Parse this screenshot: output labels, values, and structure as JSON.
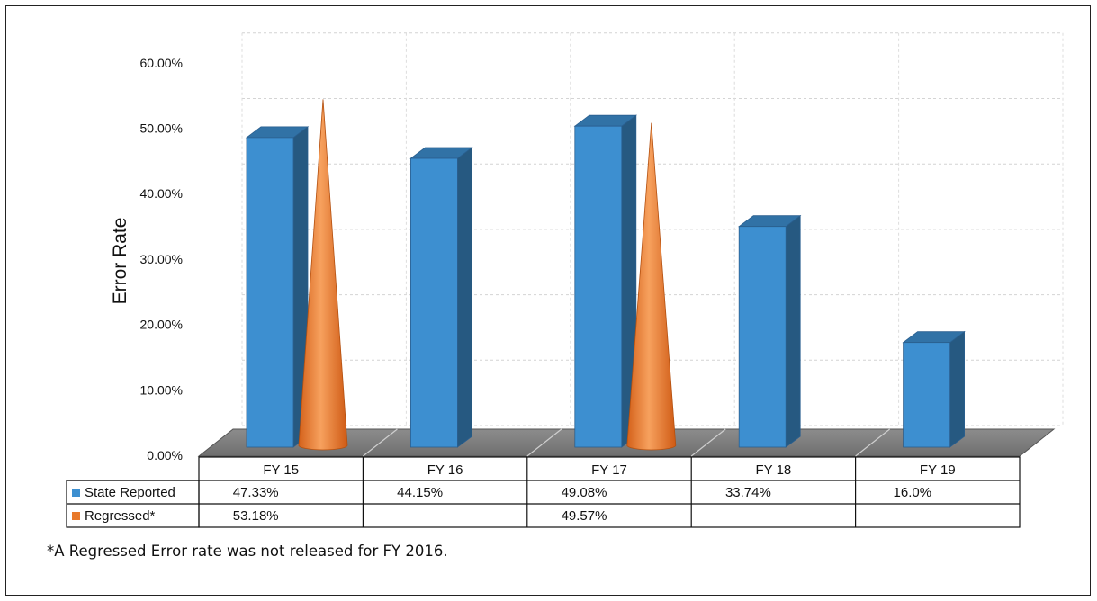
{
  "chart_data": {
    "type": "bar",
    "ylabel": "Error Rate",
    "ylim": [
      0,
      60
    ],
    "yticks": [
      "0.00%",
      "10.00%",
      "20.00%",
      "30.00%",
      "40.00%",
      "50.00%",
      "60.00%"
    ],
    "categories": [
      "FY 15",
      "FY 16",
      "FY 17",
      "FY 18",
      "FY 19"
    ],
    "series": [
      {
        "name": "State Reported",
        "shape": "3d-bar",
        "color": "#3d8fd0",
        "values": [
          47.33,
          44.15,
          49.08,
          33.74,
          16.0
        ],
        "labels": [
          "47.33%",
          "44.15%",
          "49.08%",
          "33.74%",
          "16.0%"
        ]
      },
      {
        "name": "Regressed*",
        "shape": "cone",
        "color": "#e8792a",
        "values": [
          53.18,
          null,
          49.57,
          null,
          null
        ],
        "labels": [
          "53.18%",
          "",
          "49.57%",
          "",
          ""
        ]
      }
    ],
    "grid": true,
    "legend": "data-table"
  },
  "footnote": "*A Regressed Error rate was not released for FY 2016."
}
